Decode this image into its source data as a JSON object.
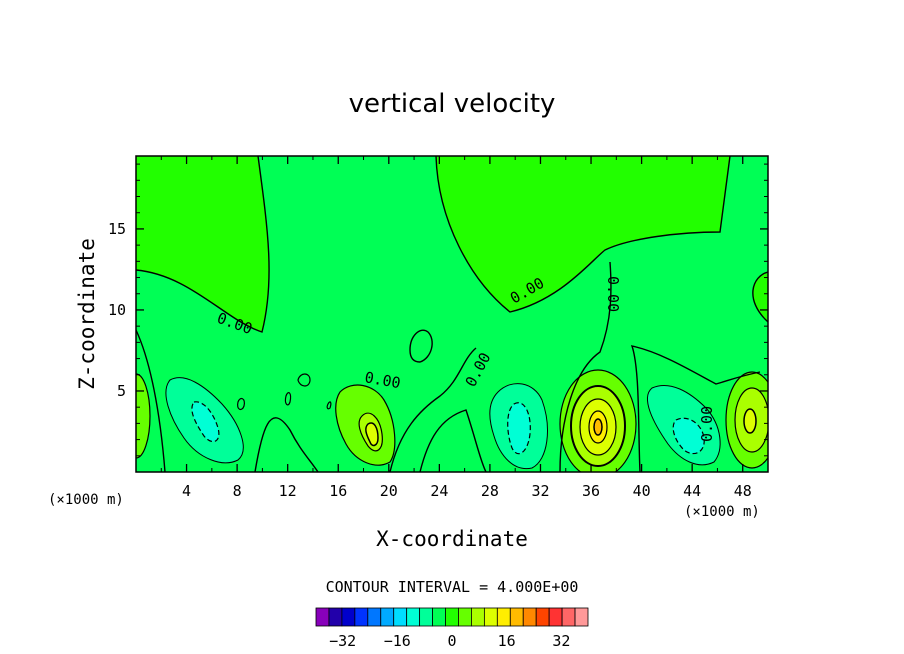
{
  "chart_data": {
    "type": "heatmap",
    "title": "vertical velocity",
    "xlabel": "X-coordinate",
    "ylabel": "Z-coordinate",
    "x_unit": "(×1000 m)",
    "y_unit": "(×1000 m)",
    "xlim": [
      0,
      50
    ],
    "ylim": [
      0,
      19.5
    ],
    "x_ticks": [
      4,
      8,
      12,
      16,
      20,
      24,
      28,
      32,
      36,
      40,
      44,
      48
    ],
    "y_ticks": [
      5,
      10,
      15
    ],
    "contour_interval_text": "CONTOUR INTERVAL = 4.000E+00",
    "contour_labels": [
      "0.00",
      "0.00",
      "0.00",
      "0.00",
      "0.00",
      "0.00"
    ],
    "colorbar": {
      "levels": [
        -36,
        -32,
        -28,
        -24,
        -20,
        -16,
        -12,
        -8,
        -4,
        0,
        4,
        8,
        12,
        16,
        20,
        24,
        28,
        32,
        36
      ],
      "tick_labels": [
        "-32",
        "-16",
        "0",
        "16",
        "32"
      ],
      "tick_values": [
        -32,
        -16,
        0,
        16,
        32
      ],
      "colors": [
        "#8800bb",
        "#2200aa",
        "#0000cc",
        "#0033ff",
        "#0077ff",
        "#00aaff",
        "#00ddff",
        "#00ffd5",
        "#00ff99",
        "#00ff55",
        "#22ff00",
        "#66ff00",
        "#aaff00",
        "#ddff00",
        "#ffee00",
        "#ffbb00",
        "#ff8800",
        "#ff4400",
        "#ff3333",
        "#ff6666",
        "#ff9999"
      ]
    },
    "features": [
      {
        "x": 5.5,
        "z": 3.2,
        "value": -12
      },
      {
        "x": 18.5,
        "z": 2.6,
        "value": 13
      },
      {
        "x": 30.0,
        "z": 3.0,
        "value": -12
      },
      {
        "x": 36.5,
        "z": 3.0,
        "value": 20
      },
      {
        "x": 43.5,
        "z": 2.8,
        "value": -12
      },
      {
        "x": 48.8,
        "z": 3.3,
        "value": 12
      },
      {
        "x": 0.3,
        "z": 3.5,
        "value": 8
      }
    ]
  }
}
